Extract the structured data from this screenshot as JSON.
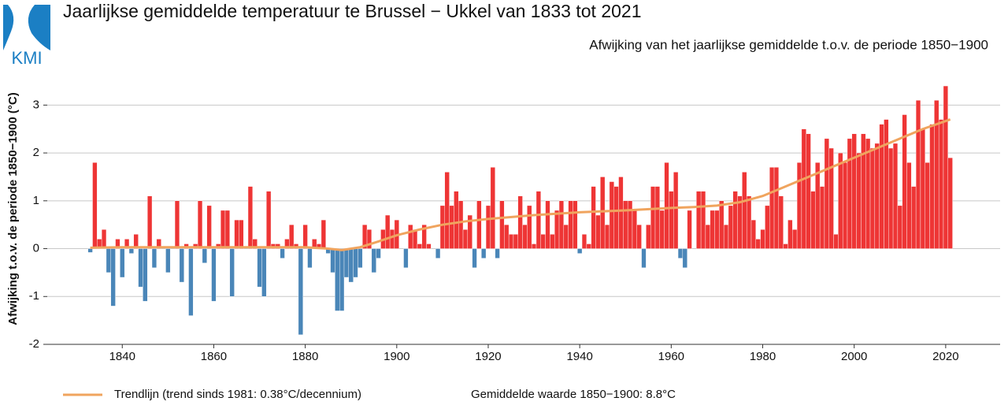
{
  "chart_data": {
    "type": "bar",
    "logo_text": "KMI",
    "title": "Jaarlijkse gemiddelde temperatuur te Brussel − Ukkel van 1833 tot 2021",
    "subtitle": "Afwijking van het jaarlijkse gemiddelde t.o.v. de periode 1850−1900",
    "y_label": "Afwijking t.o.v. de periode 1850−1900 (°C)",
    "note": "Gemiddelde waarde 1850−1900: 8.8°C",
    "positive_color": "#ee3535",
    "negative_color": "#4a86b8",
    "grid": true,
    "xlim": [
      1823.6,
      2031.9
    ],
    "ylim": [
      -2.0,
      3.5
    ],
    "xticks": [
      1840,
      1860,
      1880,
      1900,
      1920,
      1940,
      1960,
      1980,
      2000,
      2020
    ],
    "yticks": [
      -2,
      -1,
      0,
      1,
      2,
      3
    ],
    "x": [
      1833,
      1834,
      1835,
      1836,
      1837,
      1838,
      1839,
      1840,
      1841,
      1842,
      1843,
      1844,
      1845,
      1846,
      1847,
      1848,
      1849,
      1850,
      1851,
      1852,
      1853,
      1854,
      1855,
      1856,
      1857,
      1858,
      1859,
      1860,
      1861,
      1862,
      1863,
      1864,
      1865,
      1866,
      1867,
      1868,
      1869,
      1870,
      1871,
      1872,
      1873,
      1874,
      1875,
      1876,
      1877,
      1878,
      1879,
      1880,
      1881,
      1882,
      1883,
      1884,
      1885,
      1886,
      1887,
      1888,
      1889,
      1890,
      1891,
      1892,
      1893,
      1894,
      1895,
      1896,
      1897,
      1898,
      1899,
      1900,
      1901,
      1902,
      1903,
      1904,
      1905,
      1906,
      1907,
      1908,
      1909,
      1910,
      1911,
      1912,
      1913,
      1914,
      1915,
      1916,
      1917,
      1918,
      1919,
      1920,
      1921,
      1922,
      1923,
      1924,
      1925,
      1926,
      1927,
      1928,
      1929,
      1930,
      1931,
      1932,
      1933,
      1934,
      1935,
      1936,
      1937,
      1938,
      1939,
      1940,
      1941,
      1942,
      1943,
      1944,
      1945,
      1946,
      1947,
      1948,
      1949,
      1950,
      1951,
      1952,
      1953,
      1954,
      1955,
      1956,
      1957,
      1958,
      1959,
      1960,
      1961,
      1962,
      1963,
      1964,
      1965,
      1966,
      1967,
      1968,
      1969,
      1970,
      1971,
      1972,
      1973,
      1974,
      1975,
      1976,
      1977,
      1978,
      1979,
      1980,
      1981,
      1982,
      1983,
      1984,
      1985,
      1986,
      1987,
      1988,
      1989,
      1990,
      1991,
      1992,
      1993,
      1994,
      1995,
      1996,
      1997,
      1998,
      1999,
      2000,
      2001,
      2002,
      2003,
      2004,
      2005,
      2006,
      2007,
      2008,
      2009,
      2010,
      2011,
      2012,
      2013,
      2014,
      2015,
      2016,
      2017,
      2018,
      2019,
      2020,
      2021
    ],
    "values": [
      -0.08,
      1.8,
      0.2,
      0.4,
      -0.5,
      -1.2,
      0.2,
      -0.6,
      0.2,
      -0.1,
      0.3,
      -0.8,
      -1.1,
      1.1,
      -0.4,
      0.2,
      0.0,
      -0.5,
      0.0,
      1.0,
      -0.7,
      0.1,
      -1.4,
      0.1,
      1.0,
      -0.3,
      0.9,
      -1.1,
      0.1,
      0.8,
      0.8,
      -1.0,
      0.6,
      0.6,
      0.0,
      1.3,
      0.2,
      -0.8,
      -1.0,
      1.2,
      0.1,
      0.1,
      -0.2,
      0.2,
      0.5,
      0.1,
      -1.8,
      0.5,
      -0.4,
      0.2,
      0.1,
      0.6,
      -0.1,
      -0.5,
      -1.3,
      -1.3,
      -0.6,
      -0.7,
      -0.6,
      -0.4,
      0.5,
      0.4,
      -0.5,
      -0.2,
      0.4,
      0.7,
      0.4,
      0.6,
      0.0,
      -0.4,
      0.5,
      0.4,
      0.1,
      0.5,
      0.1,
      0.0,
      -0.2,
      0.9,
      1.6,
      0.9,
      1.2,
      1.0,
      0.4,
      0.7,
      -0.4,
      1.0,
      -0.2,
      0.9,
      1.7,
      -0.2,
      1.0,
      0.5,
      0.3,
      0.3,
      1.1,
      0.5,
      0.9,
      0.1,
      1.2,
      0.3,
      1.0,
      0.3,
      0.8,
      1.0,
      0.5,
      1.0,
      1.0,
      -0.1,
      0.3,
      0.1,
      1.3,
      0.7,
      1.5,
      0.5,
      1.4,
      1.3,
      1.5,
      1.0,
      1.0,
      0.8,
      0.5,
      -0.4,
      0.5,
      1.3,
      1.3,
      0.8,
      1.8,
      1.2,
      1.6,
      -0.2,
      -0.4,
      0.8,
      0.0,
      1.2,
      1.2,
      0.5,
      0.8,
      0.8,
      1.0,
      0.5,
      0.9,
      1.2,
      1.1,
      1.6,
      1.1,
      0.6,
      0.2,
      0.4,
      0.9,
      1.7,
      1.7,
      1.1,
      0.1,
      0.6,
      0.4,
      1.8,
      2.5,
      2.4,
      1.2,
      1.8,
      1.3,
      2.3,
      2.1,
      0.3,
      2.0,
      1.8,
      2.3,
      2.4,
      2.0,
      2.4,
      2.3,
      2.1,
      2.2,
      2.6,
      2.7,
      2.1,
      2.2,
      0.9,
      2.8,
      1.8,
      1.3,
      3.1,
      2.5,
      1.8,
      2.6,
      3.1,
      2.7,
      3.4,
      1.9
    ],
    "trend": {
      "name": "Trendlijn (trend sinds 1981: 0.38°C/decennium)",
      "color": "#f0a45e",
      "x": [
        1833,
        1840,
        1850,
        1860,
        1870,
        1880,
        1885,
        1888,
        1892,
        1896,
        1900,
        1905,
        1910,
        1915,
        1920,
        1930,
        1940,
        1950,
        1960,
        1965,
        1970,
        1975,
        1980,
        1985,
        1990,
        1995,
        2000,
        2005,
        2010,
        2015,
        2021
      ],
      "values": [
        0.02,
        0.03,
        0.03,
        0.03,
        0.03,
        0.03,
        0.0,
        -0.03,
        0.03,
        0.15,
        0.28,
        0.4,
        0.5,
        0.57,
        0.62,
        0.7,
        0.76,
        0.8,
        0.85,
        0.87,
        0.9,
        0.97,
        1.1,
        1.3,
        1.5,
        1.7,
        1.9,
        2.1,
        2.3,
        2.5,
        2.7
      ]
    }
  }
}
